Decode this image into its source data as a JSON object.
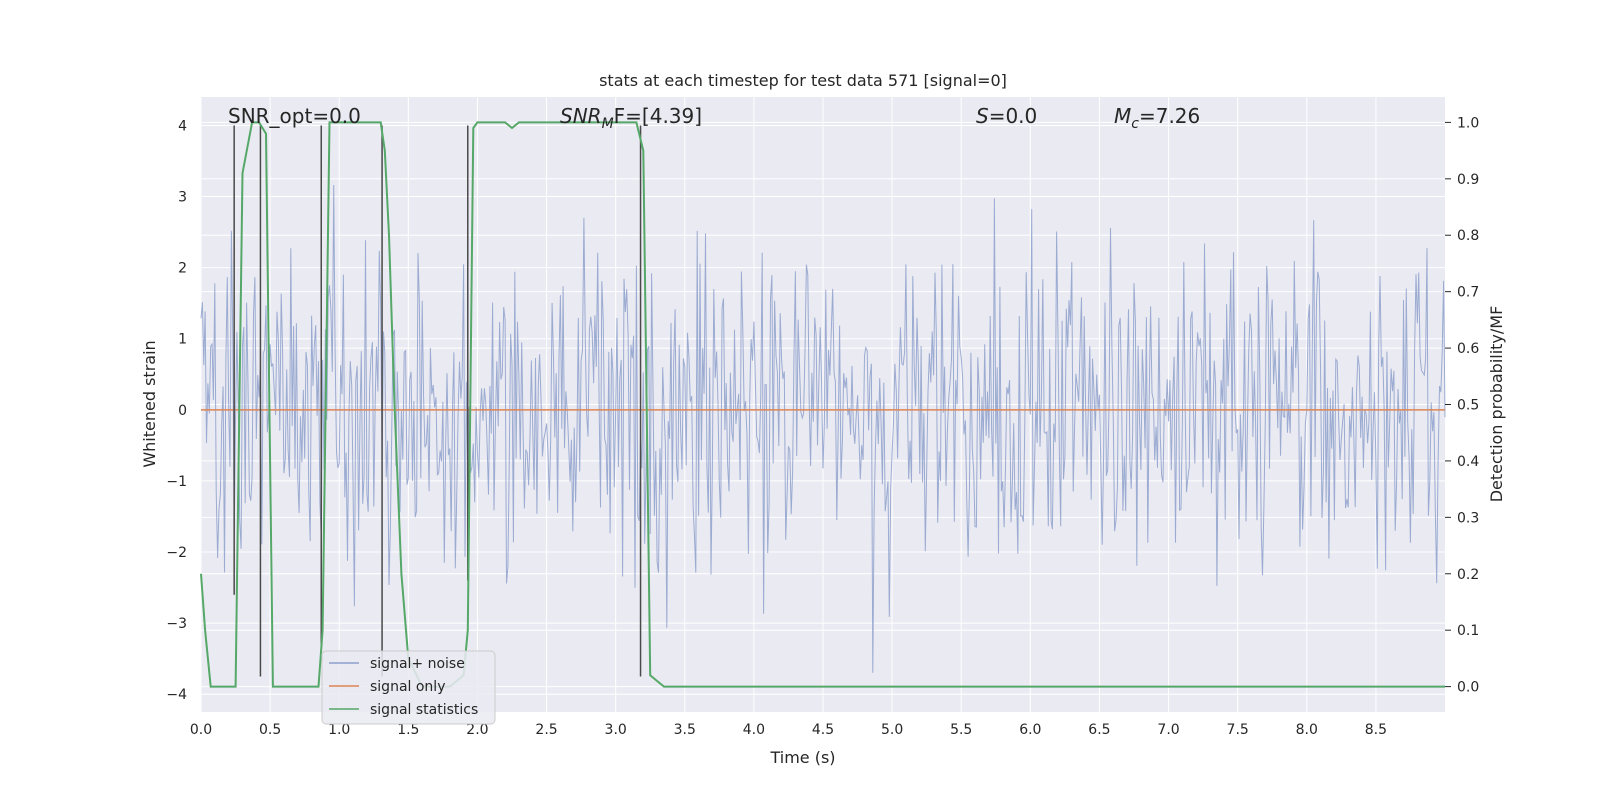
{
  "chart_data": {
    "type": "line",
    "title": "stats at each timestep for test data 571 [signal=0]",
    "xlabel": "Time (s)",
    "ylabel": "Whitened strain",
    "ylabel_right": "Detection probability/MF",
    "xlim": [
      0.0,
      9.0
    ],
    "ylim": [
      -4.25,
      4.4
    ],
    "ylim_right": [
      -0.045,
      1.045
    ],
    "x_ticks": [
      "0.0",
      "0.5",
      "1.0",
      "1.5",
      "2.0",
      "2.5",
      "3.0",
      "3.5",
      "4.0",
      "4.5",
      "5.0",
      "5.5",
      "6.0",
      "6.5",
      "7.0",
      "7.5",
      "8.0",
      "8.5"
    ],
    "y_ticks": [
      "−4",
      "−3",
      "−2",
      "−1",
      "0",
      "1",
      "2",
      "3",
      "4"
    ],
    "y_right_ticks": [
      "0.0",
      "0.1",
      "0.2",
      "0.3",
      "0.4",
      "0.5",
      "0.6",
      "0.7",
      "0.8",
      "0.9",
      "1.0"
    ],
    "grid": true,
    "legend_position": "lower-left",
    "annotations": {
      "snr_opt": "SNR_opt=0.0",
      "snr_mf_sym": "SNR",
      "snr_mf_sub": "M",
      "snr_mf_rest": "F=[4.39]",
      "s_sym": "S",
      "s_rest": "=0.0",
      "mc_sym": "M",
      "mc_sub": "c",
      "mc_rest": "=7.26"
    },
    "colors": {
      "noise": "#8da0cb",
      "signal": "#dd8452",
      "stats": "#55a868",
      "vlines": "#4a4a4a",
      "plot_bg": "#eaeaf2",
      "grid": "#ffffff"
    },
    "series": [
      {
        "name": "signal+ noise",
        "style": "noisy whitened strain, peaks roughly between -3.7 and 3.9",
        "x_range": [
          0.0,
          9.0
        ],
        "envelope_max": 3.9,
        "envelope_min": -3.7,
        "sample_count": 900
      },
      {
        "name": "signal only",
        "x": [
          0.0,
          9.0
        ],
        "y": [
          0.0,
          0.0
        ]
      },
      {
        "name": "signal statistics",
        "axis": "right",
        "x": [
          0.0,
          0.03,
          0.07,
          0.12,
          0.17,
          0.22,
          0.25,
          0.3,
          0.37,
          0.42,
          0.47,
          0.52,
          0.57,
          0.63,
          0.7,
          0.75,
          0.8,
          0.85,
          0.88,
          0.93,
          0.96,
          1.0,
          1.05,
          1.1,
          1.15,
          1.2,
          1.3,
          1.33,
          1.36,
          1.4,
          1.45,
          1.5,
          1.6,
          1.7,
          1.8,
          1.9,
          1.93,
          1.97,
          2.0,
          2.05,
          2.1,
          2.15,
          2.2,
          2.25,
          2.3,
          2.35,
          2.4,
          2.5,
          2.6,
          2.7,
          2.8,
          2.9,
          3.0,
          3.1,
          3.15,
          3.2,
          3.25,
          3.3,
          3.35,
          3.4,
          3.5,
          3.6,
          3.7,
          3.8,
          4.0,
          5.0,
          6.0,
          7.0,
          8.0,
          9.0
        ],
        "y": [
          0.2,
          0.1,
          0.0,
          0.0,
          0.0,
          0.0,
          0.0,
          0.91,
          1.0,
          1.0,
          0.98,
          0.0,
          0.0,
          0.0,
          0.0,
          0.0,
          0.0,
          0.0,
          0.1,
          1.0,
          1.0,
          1.0,
          1.0,
          1.0,
          1.0,
          1.0,
          1.0,
          0.95,
          0.8,
          0.5,
          0.2,
          0.05,
          0.0,
          0.0,
          0.0,
          0.02,
          0.1,
          0.99,
          1.0,
          1.0,
          1.0,
          1.0,
          1.0,
          0.99,
          1.0,
          1.0,
          1.0,
          1.0,
          1.0,
          1.0,
          1.0,
          1.0,
          1.0,
          1.0,
          1.0,
          0.95,
          0.02,
          0.01,
          0.0,
          0.0,
          0.0,
          0.0,
          0.0,
          0.0,
          0.0,
          0.0,
          0.0,
          0.0,
          0.0,
          0.0
        ]
      }
    ],
    "vertical_markers": [
      {
        "x": 0.24,
        "y_top": 4.0,
        "y_bottom": -2.6
      },
      {
        "x": 0.43,
        "y_top": 4.0,
        "y_bottom": -3.75
      },
      {
        "x": 0.87,
        "y_top": 4.0,
        "y_bottom": -3.3
      },
      {
        "x": 1.31,
        "y_top": 4.0,
        "y_bottom": -3.75
      },
      {
        "x": 1.93,
        "y_top": 4.0,
        "y_bottom": -2.4
      },
      {
        "x": 3.18,
        "y_top": 4.0,
        "y_bottom": -3.75
      }
    ]
  }
}
